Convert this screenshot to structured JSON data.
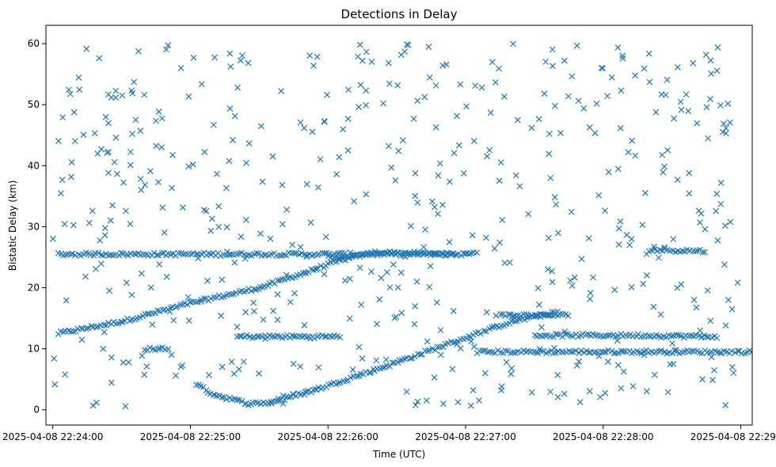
{
  "chart_data": {
    "type": "scatter",
    "title": "Detections in Delay",
    "xlabel": "Time (UTC)",
    "ylabel": "Bistatic Delay (km)",
    "marker": "x",
    "color": "#1f77b4",
    "grid": false,
    "x_unit": "seconds after 2025-04-08 22:24:00 UTC",
    "xlim": [
      -3,
      305
    ],
    "ylim": [
      -2.5,
      63
    ],
    "xticks": [
      {
        "value": 0,
        "label": "2025-04-08 22:24:00"
      },
      {
        "value": 60,
        "label": "2025-04-08 22:25:00"
      },
      {
        "value": 120,
        "label": "2025-04-08 22:26:00"
      },
      {
        "value": 180,
        "label": "2025-04-08 22:27:00"
      },
      {
        "value": 240,
        "label": "2025-04-08 22:28:00"
      },
      {
        "value": 300,
        "label": "2025-04-08 22:29:00"
      }
    ],
    "yticks": [
      0,
      10,
      20,
      30,
      40,
      50,
      60
    ],
    "tracks": [
      {
        "points": [
          [
            2,
            12.5
          ],
          [
            30,
            14.5
          ],
          [
            60,
            17.5
          ],
          [
            90,
            20
          ],
          [
            110,
            22.5
          ],
          [
            125,
            24.5
          ],
          [
            140,
            25.8
          ],
          [
            175,
            25.5
          ]
        ]
      },
      {
        "points": [
          [
            2,
            25.5
          ],
          [
            50,
            25.5
          ],
          [
            180,
            25.5
          ],
          [
            185,
            26
          ]
        ]
      },
      {
        "points": [
          [
            62,
            4.2
          ],
          [
            70,
            2.5
          ],
          [
            85,
            1.0
          ],
          [
            95,
            1.2
          ],
          [
            110,
            2.8
          ],
          [
            140,
            6.5
          ],
          [
            170,
            10.5
          ],
          [
            200,
            14.5
          ],
          [
            220,
            16
          ]
        ]
      },
      {
        "points": [
          [
            80,
            12
          ],
          [
            105,
            12
          ],
          [
            125,
            12
          ]
        ]
      },
      {
        "points": [
          [
            185,
            9.5
          ],
          [
            230,
            9.5
          ],
          [
            310,
            9.5
          ]
        ]
      },
      {
        "points": [
          [
            210,
            12.2
          ],
          [
            255,
            12.2
          ],
          [
            290,
            12
          ]
        ]
      },
      {
        "points": [
          [
            195,
            15.5
          ],
          [
            210,
            15.5
          ],
          [
            225,
            15.5
          ]
        ]
      },
      {
        "points": [
          [
            260,
            26.2
          ],
          [
            285,
            26
          ]
        ]
      },
      {
        "points": [
          [
            120,
            25
          ],
          [
            130,
            25
          ]
        ]
      },
      {
        "points": [
          [
            40,
            10
          ],
          [
            50,
            10
          ]
        ]
      }
    ],
    "noise": {
      "count": 520,
      "x_range": [
        0,
        300
      ],
      "y_range": [
        0.5,
        60
      ]
    }
  }
}
